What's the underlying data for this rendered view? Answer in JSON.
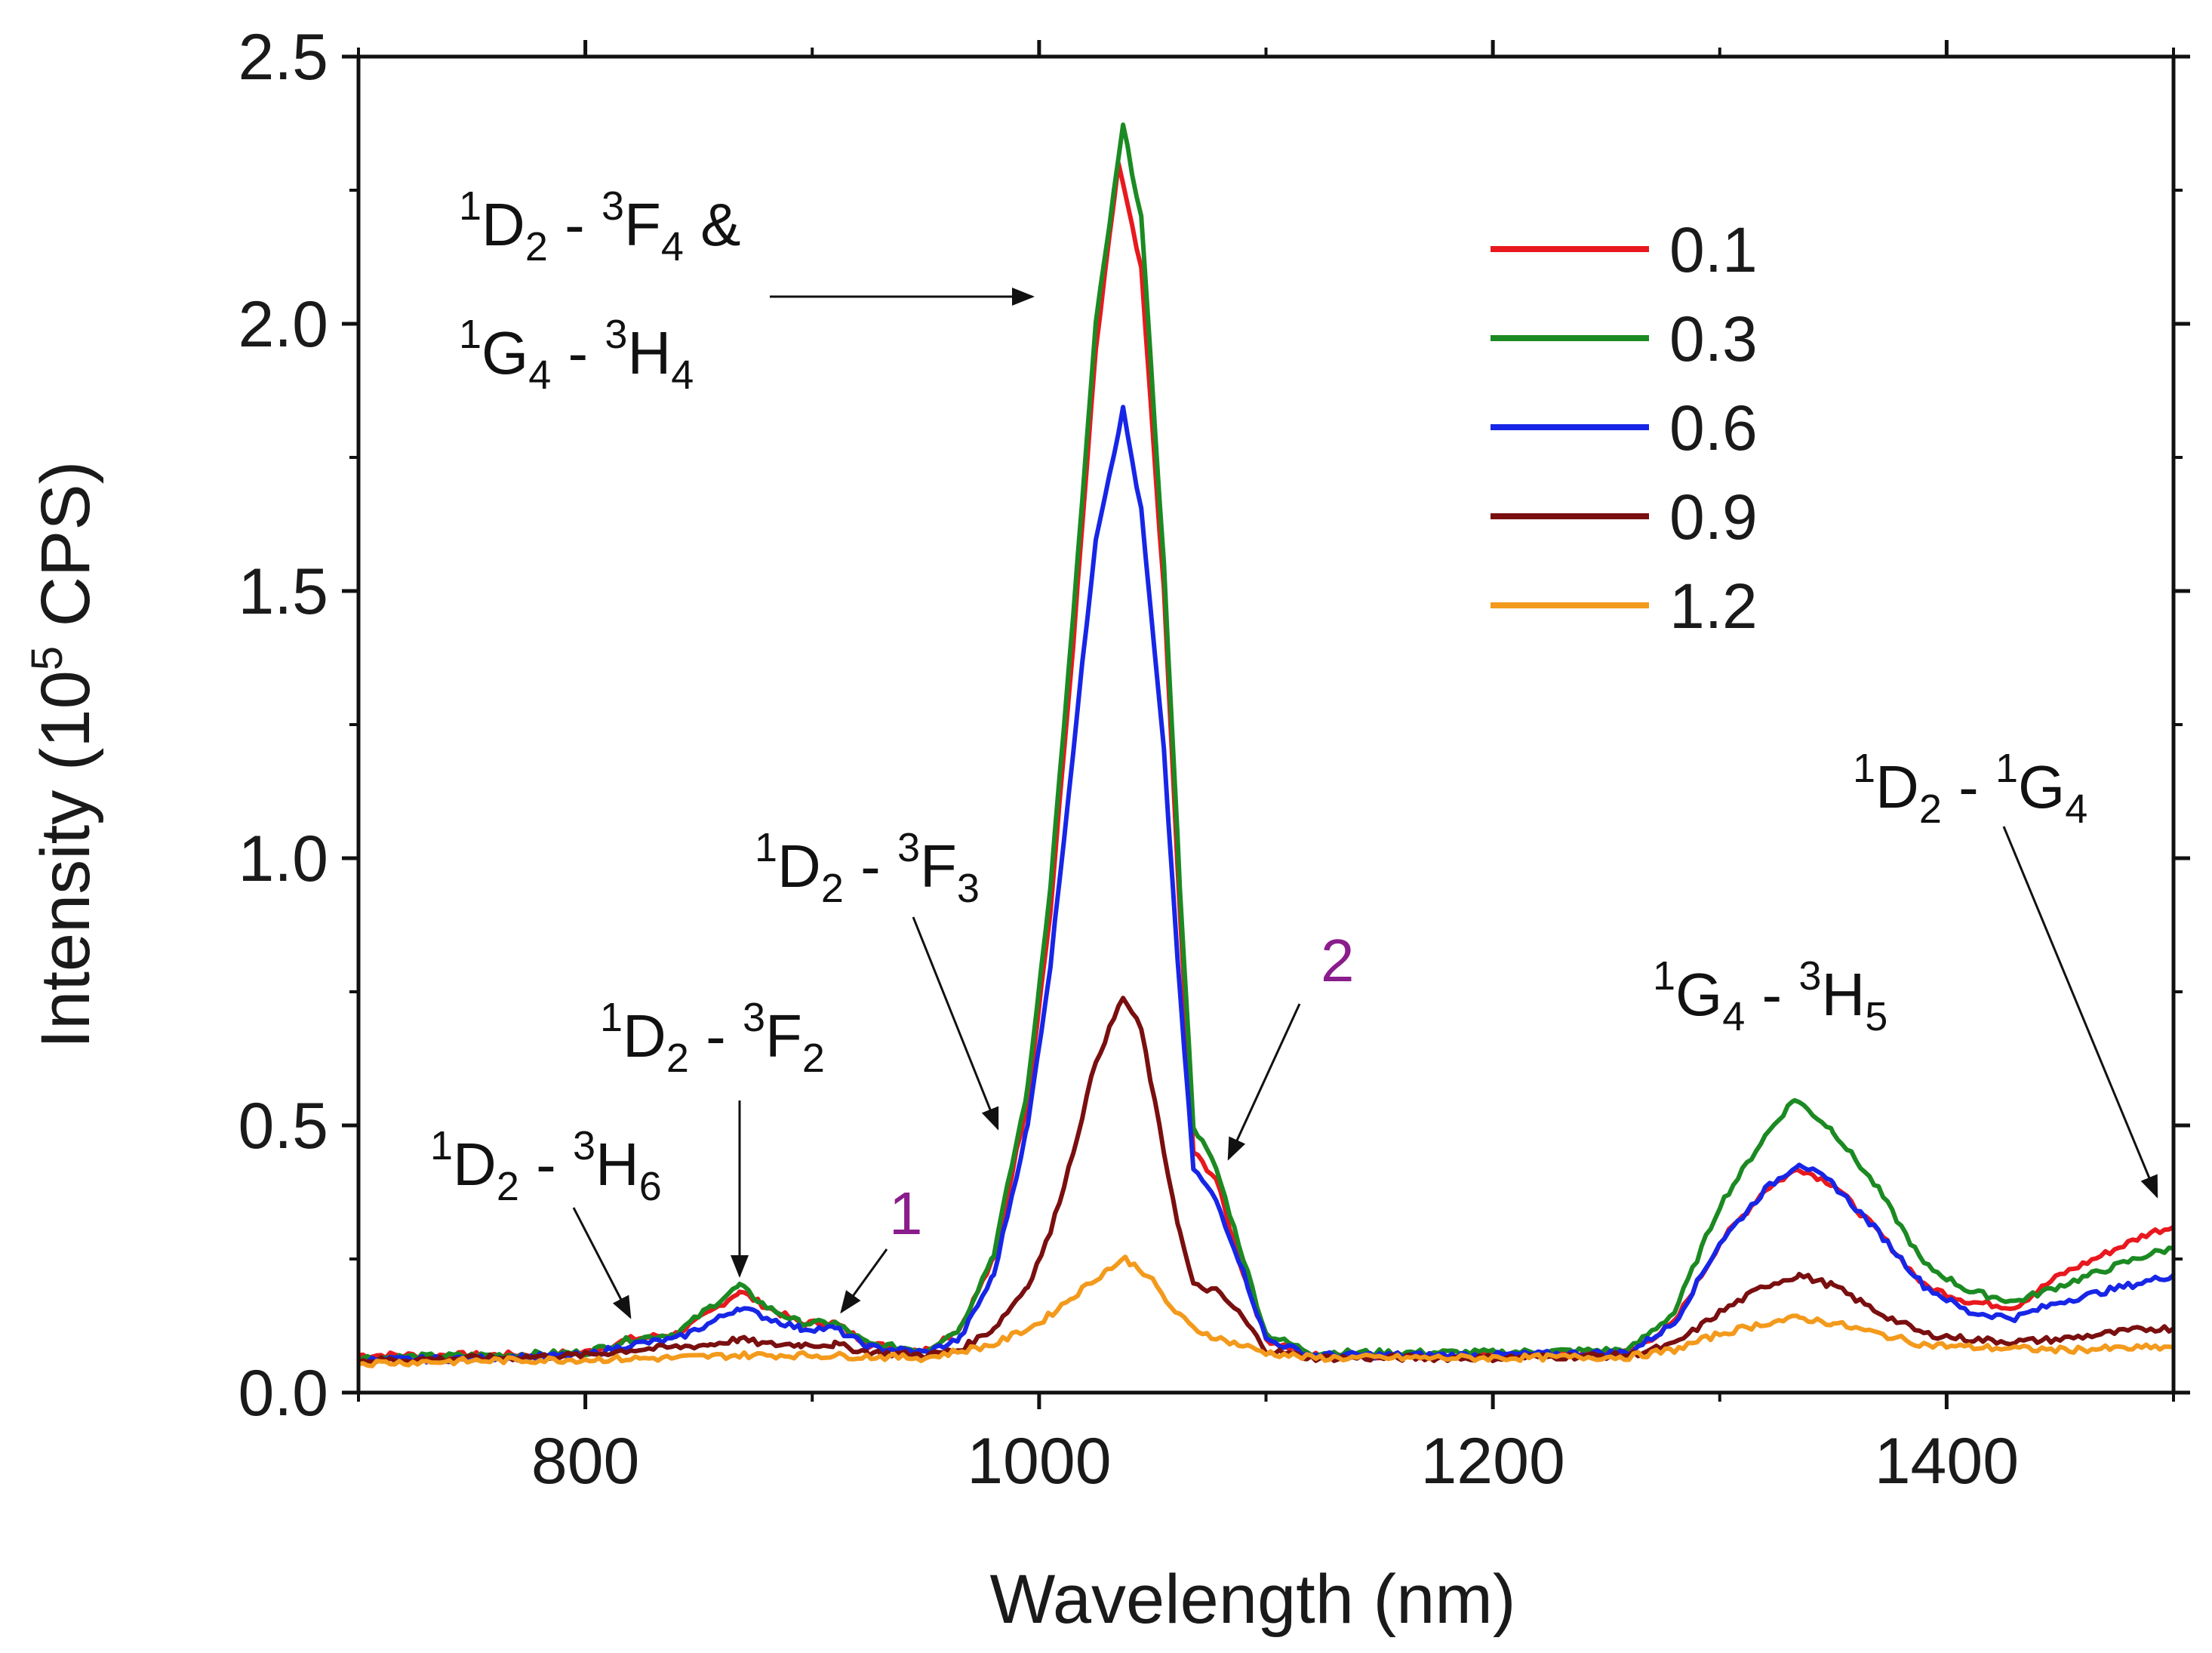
{
  "chart_data": {
    "type": "line",
    "xlabel": "Wavelength (nm)",
    "ylabel": {
      "pre": "Intensity (10",
      "sup": "5",
      "post": " CPS)"
    },
    "xlim": [
      700,
      1500
    ],
    "ylim": [
      0,
      2.5
    ],
    "xticks": [
      {
        "value": 800,
        "label": "800"
      },
      {
        "value": 1000,
        "label": "1000"
      },
      {
        "value": 1200,
        "label": "1200"
      },
      {
        "value": 1400,
        "label": "1400"
      }
    ],
    "yticks": [
      {
        "value": 0.0,
        "label": "0.0"
      },
      {
        "value": 0.5,
        "label": "0.5"
      },
      {
        "value": 1.0,
        "label": "1.0"
      },
      {
        "value": 1.5,
        "label": "1.5"
      },
      {
        "value": 2.0,
        "label": "2.0"
      },
      {
        "value": 2.5,
        "label": "2.5"
      }
    ],
    "legend_position": "top-right",
    "series": [
      {
        "name": "0.1",
        "color": "#e8191e",
        "points": [
          [
            700,
            0.07
          ],
          [
            760,
            0.07
          ],
          [
            800,
            0.075
          ],
          [
            820,
            0.1
          ],
          [
            840,
            0.11
          ],
          [
            855,
            0.15
          ],
          [
            868,
            0.19
          ],
          [
            880,
            0.16
          ],
          [
            895,
            0.13
          ],
          [
            910,
            0.13
          ],
          [
            925,
            0.09
          ],
          [
            950,
            0.08
          ],
          [
            965,
            0.12
          ],
          [
            980,
            0.25
          ],
          [
            995,
            0.55
          ],
          [
            1005,
            0.9
          ],
          [
            1015,
            1.4
          ],
          [
            1025,
            1.95
          ],
          [
            1035,
            2.3
          ],
          [
            1045,
            2.1
          ],
          [
            1055,
            1.5
          ],
          [
            1062,
            0.9
          ],
          [
            1068,
            0.45
          ],
          [
            1078,
            0.4
          ],
          [
            1088,
            0.25
          ],
          [
            1100,
            0.1
          ],
          [
            1120,
            0.07
          ],
          [
            1200,
            0.07
          ],
          [
            1260,
            0.075
          ],
          [
            1280,
            0.13
          ],
          [
            1300,
            0.28
          ],
          [
            1320,
            0.38
          ],
          [
            1335,
            0.42
          ],
          [
            1350,
            0.39
          ],
          [
            1370,
            0.3
          ],
          [
            1390,
            0.2
          ],
          [
            1410,
            0.17
          ],
          [
            1430,
            0.16
          ],
          [
            1450,
            0.22
          ],
          [
            1470,
            0.26
          ],
          [
            1490,
            0.3
          ],
          [
            1500,
            0.31
          ]
        ]
      },
      {
        "name": "0.3",
        "color": "#1c8a22",
        "points": [
          [
            700,
            0.065
          ],
          [
            760,
            0.07
          ],
          [
            800,
            0.075
          ],
          [
            820,
            0.1
          ],
          [
            840,
            0.11
          ],
          [
            855,
            0.16
          ],
          [
            868,
            0.2
          ],
          [
            880,
            0.16
          ],
          [
            895,
            0.13
          ],
          [
            910,
            0.13
          ],
          [
            925,
            0.09
          ],
          [
            950,
            0.08
          ],
          [
            965,
            0.12
          ],
          [
            980,
            0.26
          ],
          [
            995,
            0.57
          ],
          [
            1005,
            0.95
          ],
          [
            1015,
            1.45
          ],
          [
            1025,
            2.0
          ],
          [
            1037,
            2.37
          ],
          [
            1045,
            2.2
          ],
          [
            1055,
            1.55
          ],
          [
            1062,
            0.95
          ],
          [
            1068,
            0.5
          ],
          [
            1078,
            0.42
          ],
          [
            1088,
            0.28
          ],
          [
            1100,
            0.11
          ],
          [
            1120,
            0.075
          ],
          [
            1200,
            0.075
          ],
          [
            1260,
            0.08
          ],
          [
            1280,
            0.15
          ],
          [
            1300,
            0.35
          ],
          [
            1320,
            0.48
          ],
          [
            1333,
            0.55
          ],
          [
            1350,
            0.49
          ],
          [
            1370,
            0.38
          ],
          [
            1390,
            0.24
          ],
          [
            1410,
            0.19
          ],
          [
            1430,
            0.17
          ],
          [
            1450,
            0.2
          ],
          [
            1470,
            0.23
          ],
          [
            1490,
            0.26
          ],
          [
            1500,
            0.27
          ]
        ]
      },
      {
        "name": "0.6",
        "color": "#1726e6",
        "points": [
          [
            700,
            0.06
          ],
          [
            760,
            0.065
          ],
          [
            800,
            0.07
          ],
          [
            820,
            0.09
          ],
          [
            840,
            0.1
          ],
          [
            855,
            0.13
          ],
          [
            868,
            0.16
          ],
          [
            880,
            0.14
          ],
          [
            895,
            0.12
          ],
          [
            910,
            0.12
          ],
          [
            925,
            0.085
          ],
          [
            950,
            0.075
          ],
          [
            965,
            0.1
          ],
          [
            980,
            0.22
          ],
          [
            995,
            0.5
          ],
          [
            1005,
            0.8
          ],
          [
            1015,
            1.2
          ],
          [
            1025,
            1.6
          ],
          [
            1037,
            1.84
          ],
          [
            1045,
            1.65
          ],
          [
            1055,
            1.2
          ],
          [
            1062,
            0.75
          ],
          [
            1068,
            0.42
          ],
          [
            1078,
            0.36
          ],
          [
            1088,
            0.25
          ],
          [
            1100,
            0.1
          ],
          [
            1120,
            0.07
          ],
          [
            1200,
            0.07
          ],
          [
            1260,
            0.075
          ],
          [
            1280,
            0.13
          ],
          [
            1300,
            0.28
          ],
          [
            1320,
            0.38
          ],
          [
            1335,
            0.43
          ],
          [
            1350,
            0.39
          ],
          [
            1370,
            0.3
          ],
          [
            1390,
            0.2
          ],
          [
            1410,
            0.15
          ],
          [
            1430,
            0.14
          ],
          [
            1450,
            0.17
          ],
          [
            1470,
            0.19
          ],
          [
            1490,
            0.21
          ],
          [
            1500,
            0.22
          ]
        ]
      },
      {
        "name": "0.9",
        "color": "#7a0f10",
        "points": [
          [
            700,
            0.06
          ],
          [
            760,
            0.065
          ],
          [
            800,
            0.07
          ],
          [
            820,
            0.08
          ],
          [
            840,
            0.085
          ],
          [
            855,
            0.09
          ],
          [
            868,
            0.1
          ],
          [
            880,
            0.09
          ],
          [
            895,
            0.09
          ],
          [
            910,
            0.09
          ],
          [
            925,
            0.075
          ],
          [
            950,
            0.07
          ],
          [
            965,
            0.08
          ],
          [
            980,
            0.12
          ],
          [
            995,
            0.2
          ],
          [
            1005,
            0.3
          ],
          [
            1015,
            0.45
          ],
          [
            1025,
            0.62
          ],
          [
            1037,
            0.74
          ],
          [
            1045,
            0.68
          ],
          [
            1055,
            0.45
          ],
          [
            1062,
            0.3
          ],
          [
            1068,
            0.2
          ],
          [
            1078,
            0.19
          ],
          [
            1088,
            0.15
          ],
          [
            1100,
            0.08
          ],
          [
            1120,
            0.065
          ],
          [
            1200,
            0.065
          ],
          [
            1260,
            0.07
          ],
          [
            1280,
            0.09
          ],
          [
            1300,
            0.15
          ],
          [
            1320,
            0.2
          ],
          [
            1335,
            0.22
          ],
          [
            1350,
            0.2
          ],
          [
            1370,
            0.15
          ],
          [
            1390,
            0.11
          ],
          [
            1410,
            0.1
          ],
          [
            1430,
            0.095
          ],
          [
            1450,
            0.1
          ],
          [
            1470,
            0.11
          ],
          [
            1490,
            0.12
          ],
          [
            1500,
            0.12
          ]
        ]
      },
      {
        "name": "1.2",
        "color": "#f39a1c",
        "points": [
          [
            700,
            0.055
          ],
          [
            760,
            0.06
          ],
          [
            800,
            0.062
          ],
          [
            840,
            0.065
          ],
          [
            868,
            0.07
          ],
          [
            900,
            0.07
          ],
          [
            950,
            0.065
          ],
          [
            980,
            0.09
          ],
          [
            1000,
            0.13
          ],
          [
            1015,
            0.18
          ],
          [
            1030,
            0.23
          ],
          [
            1038,
            0.25
          ],
          [
            1048,
            0.22
          ],
          [
            1058,
            0.16
          ],
          [
            1068,
            0.12
          ],
          [
            1080,
            0.1
          ],
          [
            1100,
            0.075
          ],
          [
            1120,
            0.065
          ],
          [
            1200,
            0.065
          ],
          [
            1260,
            0.067
          ],
          [
            1280,
            0.08
          ],
          [
            1300,
            0.11
          ],
          [
            1320,
            0.13
          ],
          [
            1335,
            0.14
          ],
          [
            1350,
            0.13
          ],
          [
            1370,
            0.11
          ],
          [
            1390,
            0.09
          ],
          [
            1410,
            0.085
          ],
          [
            1450,
            0.08
          ],
          [
            1500,
            0.085
          ]
        ]
      }
    ],
    "annotations": [
      {
        "id": "peak-main",
        "parts": [
          {
            "t": "1",
            "s": "sup"
          },
          {
            "t": "D",
            "s": ""
          },
          {
            "t": "2",
            "s": "sub"
          },
          {
            "t": " - ",
            "s": ""
          },
          {
            "t": "3",
            "s": "sup"
          },
          {
            "t": "F",
            "s": ""
          },
          {
            "t": "4",
            "s": "sub"
          },
          {
            "t": " &",
            "s": ""
          }
        ]
      },
      {
        "id": "peak-main-2",
        "parts": [
          {
            "t": "1",
            "s": "sup"
          },
          {
            "t": "G",
            "s": ""
          },
          {
            "t": "4",
            "s": "sub"
          },
          {
            "t": " - ",
            "s": ""
          },
          {
            "t": "3",
            "s": "sup"
          },
          {
            "t": "H",
            "s": ""
          },
          {
            "t": "4",
            "s": "sub"
          }
        ]
      },
      {
        "id": "peak-h6",
        "parts": [
          {
            "t": "1",
            "s": "sup"
          },
          {
            "t": "D",
            "s": ""
          },
          {
            "t": "2",
            "s": "sub"
          },
          {
            "t": " - ",
            "s": ""
          },
          {
            "t": "3",
            "s": "sup"
          },
          {
            "t": "H",
            "s": ""
          },
          {
            "t": "6",
            "s": "sub"
          }
        ]
      },
      {
        "id": "peak-f2",
        "parts": [
          {
            "t": "1",
            "s": "sup"
          },
          {
            "t": "D",
            "s": ""
          },
          {
            "t": "2",
            "s": "sub"
          },
          {
            "t": " - ",
            "s": ""
          },
          {
            "t": "3",
            "s": "sup"
          },
          {
            "t": "F",
            "s": ""
          },
          {
            "t": "2",
            "s": "sub"
          }
        ]
      },
      {
        "id": "peak-f3",
        "parts": [
          {
            "t": "1",
            "s": "sup"
          },
          {
            "t": "D",
            "s": ""
          },
          {
            "t": "2",
            "s": "sub"
          },
          {
            "t": " - ",
            "s": ""
          },
          {
            "t": "3",
            "s": "sup"
          },
          {
            "t": "F",
            "s": ""
          },
          {
            "t": "3",
            "s": "sub"
          }
        ]
      },
      {
        "id": "peak-h5",
        "parts": [
          {
            "t": "1",
            "s": "sup"
          },
          {
            "t": "G",
            "s": ""
          },
          {
            "t": "4",
            "s": "sub"
          },
          {
            "t": " - ",
            "s": ""
          },
          {
            "t": "3",
            "s": "sup"
          },
          {
            "t": "H",
            "s": ""
          },
          {
            "t": "5",
            "s": "sub"
          }
        ]
      },
      {
        "id": "peak-g4",
        "parts": [
          {
            "t": "1",
            "s": "sup"
          },
          {
            "t": "D",
            "s": ""
          },
          {
            "t": "2",
            "s": "sub"
          },
          {
            "t": " - ",
            "s": ""
          },
          {
            "t": "1",
            "s": "sup"
          },
          {
            "t": "G",
            "s": ""
          },
          {
            "t": "4",
            "s": "sub"
          }
        ]
      }
    ],
    "markers": [
      {
        "label": "1",
        "color": "#8a1c8c"
      },
      {
        "label": "2",
        "color": "#8a1c8c"
      }
    ]
  }
}
